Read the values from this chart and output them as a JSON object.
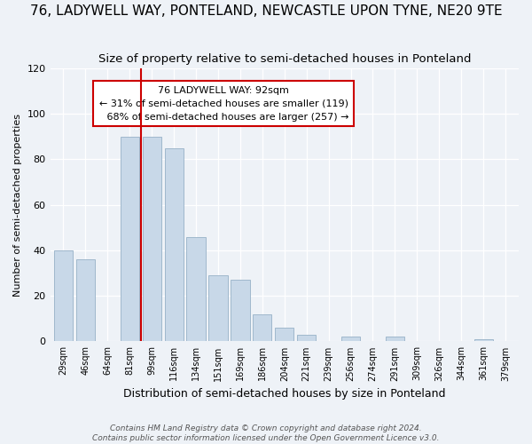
{
  "title": "76, LADYWELL WAY, PONTELAND, NEWCASTLE UPON TYNE, NE20 9TE",
  "subtitle": "Size of property relative to semi-detached houses in Ponteland",
  "xlabel": "Distribution of semi-detached houses by size in Ponteland",
  "ylabel": "Number of semi-detached properties",
  "categories": [
    "29sqm",
    "46sqm",
    "64sqm",
    "81sqm",
    "99sqm",
    "116sqm",
    "134sqm",
    "151sqm",
    "169sqm",
    "186sqm",
    "204sqm",
    "221sqm",
    "239sqm",
    "256sqm",
    "274sqm",
    "291sqm",
    "309sqm",
    "326sqm",
    "344sqm",
    "361sqm",
    "379sqm"
  ],
  "values": [
    40,
    36,
    0,
    90,
    90,
    85,
    46,
    29,
    27,
    12,
    6,
    3,
    0,
    2,
    0,
    2,
    0,
    0,
    0,
    1,
    0
  ],
  "bar_color": "#c8d8e8",
  "bar_edge_color": "#a0b8cc",
  "marker_label": "76 LADYWELL WAY: 92sqm",
  "smaller_pct": "31%",
  "smaller_count": 119,
  "larger_pct": "68%",
  "larger_count": 257,
  "annotation_box_color": "#ffffff",
  "annotation_box_edge": "#cc0000",
  "marker_line_color": "#cc0000",
  "ylim": [
    0,
    120
  ],
  "yticks": [
    0,
    20,
    40,
    60,
    80,
    100,
    120
  ],
  "footer_line1": "Contains HM Land Registry data © Crown copyright and database right 2024.",
  "footer_line2": "Contains public sector information licensed under the Open Government Licence v3.0.",
  "background_color": "#eef2f7",
  "title_fontsize": 11,
  "subtitle_fontsize": 9.5
}
